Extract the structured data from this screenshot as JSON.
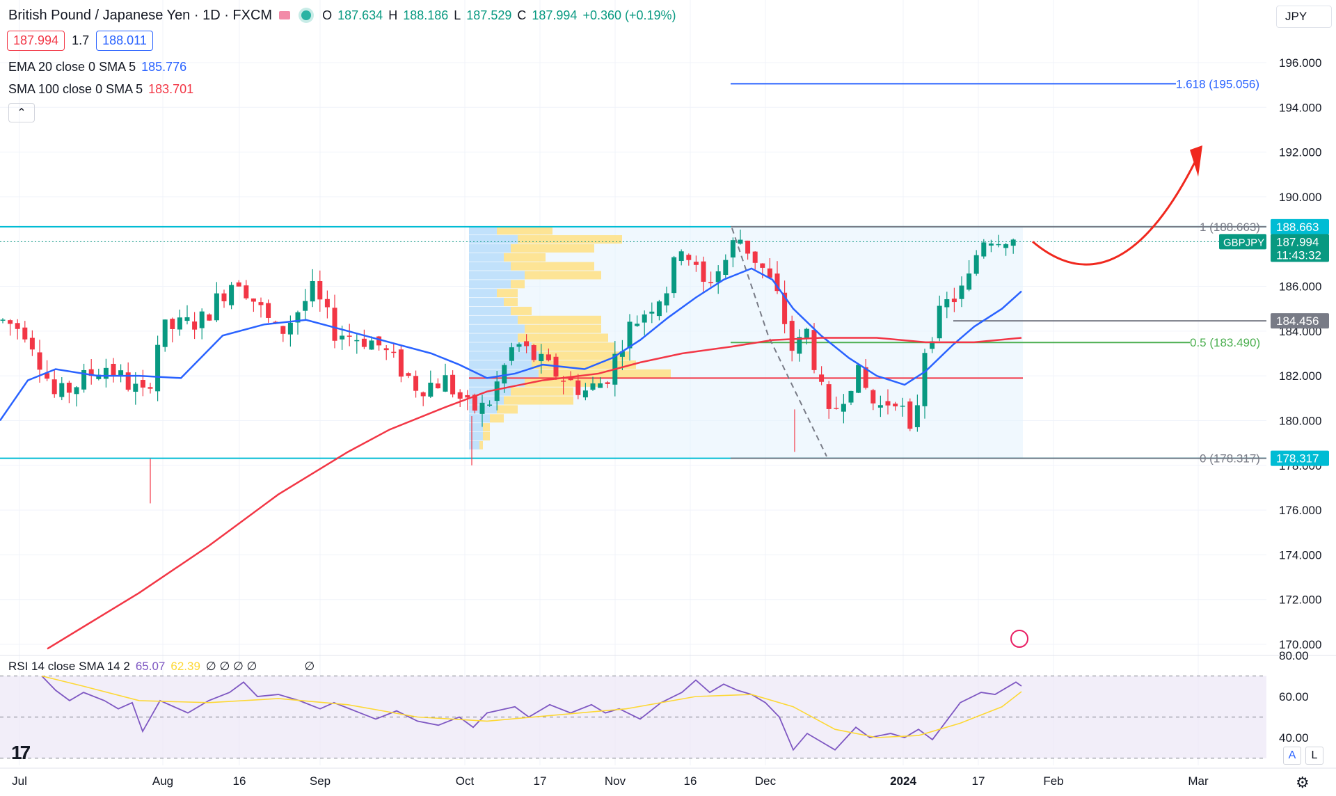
{
  "header": {
    "title": "British Pound / Japanese Yen · 1D · FXCM",
    "ohlc": [
      {
        "k": "O",
        "v": "187.634"
      },
      {
        "k": "H",
        "v": "188.186"
      },
      {
        "k": "L",
        "v": "187.529"
      },
      {
        "k": "C",
        "v": "187.994"
      }
    ],
    "change": "+0.360 (+0.19%)",
    "bid": "187.994",
    "spread": "1.7",
    "ask": "188.011",
    "currency": "JPY"
  },
  "indicators": {
    "ema": {
      "name": "EMA 20 close 0 SMA 5",
      "value": "185.776",
      "color": "#2962ff"
    },
    "sma": {
      "name": "SMA 100 close 0 SMA 5",
      "value": "183.701",
      "color": "#f23645"
    },
    "rsi": {
      "name": "RSI 14 close SMA 14 2",
      "value": "65.07",
      "sma_value": "62.39",
      "glyphs": "∅ ∅ ∅ ∅",
      "glyph2": "∅"
    }
  },
  "ui": {
    "collapse": "⌃",
    "btn_a": "A",
    "btn_l": "L",
    "logo": "17",
    "settings": "⚙"
  },
  "colors": {
    "up": "#089981",
    "down": "#f23645",
    "ema": "#2962ff",
    "sma": "#f23645",
    "range_line": "#00bcd4",
    "fib_blue": "#2962ff",
    "fib_green": "#4caf50",
    "rsi": "#7e57c2",
    "rsi_sma": "#fdd835",
    "arrow": "#f0281e"
  },
  "chart_data": {
    "type": "candlestick",
    "symbol": "GBPJPY",
    "y_axis": {
      "ylim": [
        169.9,
        197.6
      ],
      "ticks": [
        "196.000",
        "194.000",
        "192.000",
        "190.000",
        "188.000",
        "186.000",
        "184.000",
        "182.000",
        "180.000",
        "178.000",
        "176.000",
        "174.000",
        "172.000",
        "170.000"
      ]
    },
    "x_axis": {
      "labels": [
        "Jul",
        "Aug",
        "16",
        "Sep",
        "Oct",
        "17",
        "Nov",
        "16",
        "Dec",
        "2024",
        "17",
        "Feb",
        "Mar"
      ]
    },
    "price_labels": {
      "high": "188.663",
      "last": "187.994",
      "countdown": "11:43:32",
      "support_mid": "184.456",
      "low": "178.317",
      "symbol_tag": "GBPJPY"
    },
    "fib_levels": [
      {
        "label": "1.618 (195.056)",
        "value": 195.056
      },
      {
        "label": "1 (188.663)",
        "value": 188.663
      },
      {
        "label": "0.5 (183.490)",
        "value": 183.49
      },
      {
        "label": "0 (178.317)",
        "value": 178.317
      }
    ],
    "horizontal_levels": [
      188.663,
      178.317,
      184.456,
      181.9
    ],
    "ema_last": 185.776,
    "sma_last": 183.701,
    "rsi": {
      "ylim": [
        25,
        80
      ],
      "ticks": [
        "80.00",
        "60.00",
        "40.00"
      ],
      "bands": [
        70,
        50,
        30
      ],
      "last": 65.07,
      "sma_last": 62.39
    }
  }
}
